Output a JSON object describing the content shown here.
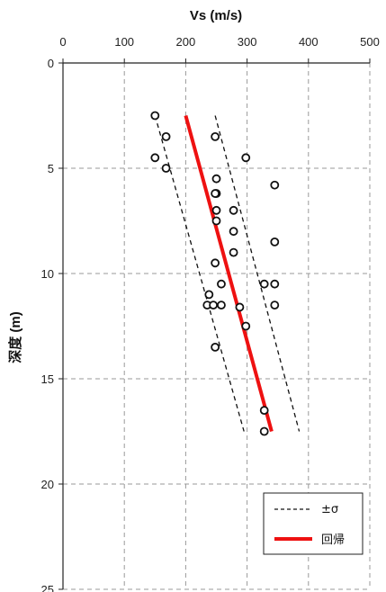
{
  "chart_data": {
    "type": "scatter",
    "xlabel": "Vs (m/s)",
    "ylabel": "深度 (m)",
    "xlim": [
      0,
      500
    ],
    "ylim": [
      0,
      25
    ],
    "x_ticks": [
      "0",
      "100",
      "200",
      "300",
      "400",
      "500"
    ],
    "y_ticks": [
      "0",
      "5",
      "10",
      "15",
      "20",
      "25"
    ],
    "x_axis_position": "top",
    "y_axis_inverted": true,
    "grid": "dashed",
    "legend_position": "bottom-right",
    "points": [
      {
        "x": 150,
        "y": 2.5
      },
      {
        "x": 168,
        "y": 3.5
      },
      {
        "x": 248,
        "y": 3.5
      },
      {
        "x": 150,
        "y": 4.5
      },
      {
        "x": 168,
        "y": 5.0
      },
      {
        "x": 298,
        "y": 4.5
      },
      {
        "x": 250,
        "y": 5.5
      },
      {
        "x": 250,
        "y": 6.2
      },
      {
        "x": 248,
        "y": 6.2
      },
      {
        "x": 345,
        "y": 5.8
      },
      {
        "x": 250,
        "y": 7.0
      },
      {
        "x": 278,
        "y": 7.0
      },
      {
        "x": 250,
        "y": 7.5
      },
      {
        "x": 278,
        "y": 8.0
      },
      {
        "x": 345,
        "y": 8.5
      },
      {
        "x": 278,
        "y": 9.0
      },
      {
        "x": 248,
        "y": 9.5
      },
      {
        "x": 258,
        "y": 10.5
      },
      {
        "x": 328,
        "y": 10.5
      },
      {
        "x": 345,
        "y": 10.5
      },
      {
        "x": 238,
        "y": 11.0
      },
      {
        "x": 235,
        "y": 11.5
      },
      {
        "x": 245,
        "y": 11.5
      },
      {
        "x": 258,
        "y": 11.5
      },
      {
        "x": 288,
        "y": 11.6
      },
      {
        "x": 345,
        "y": 11.5
      },
      {
        "x": 298,
        "y": 12.5
      },
      {
        "x": 248,
        "y": 13.5
      },
      {
        "x": 328,
        "y": 16.5
      },
      {
        "x": 328,
        "y": 17.5
      }
    ],
    "series": [
      {
        "name": "±σ",
        "style": "dashed",
        "color": "#111111",
        "x": [
          150,
          295
        ],
        "y": [
          2.5,
          17.5
        ]
      },
      {
        "name": "",
        "style": "dashed",
        "color": "#111111",
        "x": [
          248,
          385
        ],
        "y": [
          2.5,
          17.5
        ]
      },
      {
        "name": "回帰",
        "style": "solid",
        "color": "#ee1111",
        "x": [
          200,
          340
        ],
        "y": [
          2.5,
          17.5
        ]
      }
    ],
    "legend": [
      {
        "label": "±σ",
        "style": "dashed",
        "color": "#111111"
      },
      {
        "label": "回帰",
        "style": "solid",
        "color": "#ee1111"
      }
    ]
  }
}
